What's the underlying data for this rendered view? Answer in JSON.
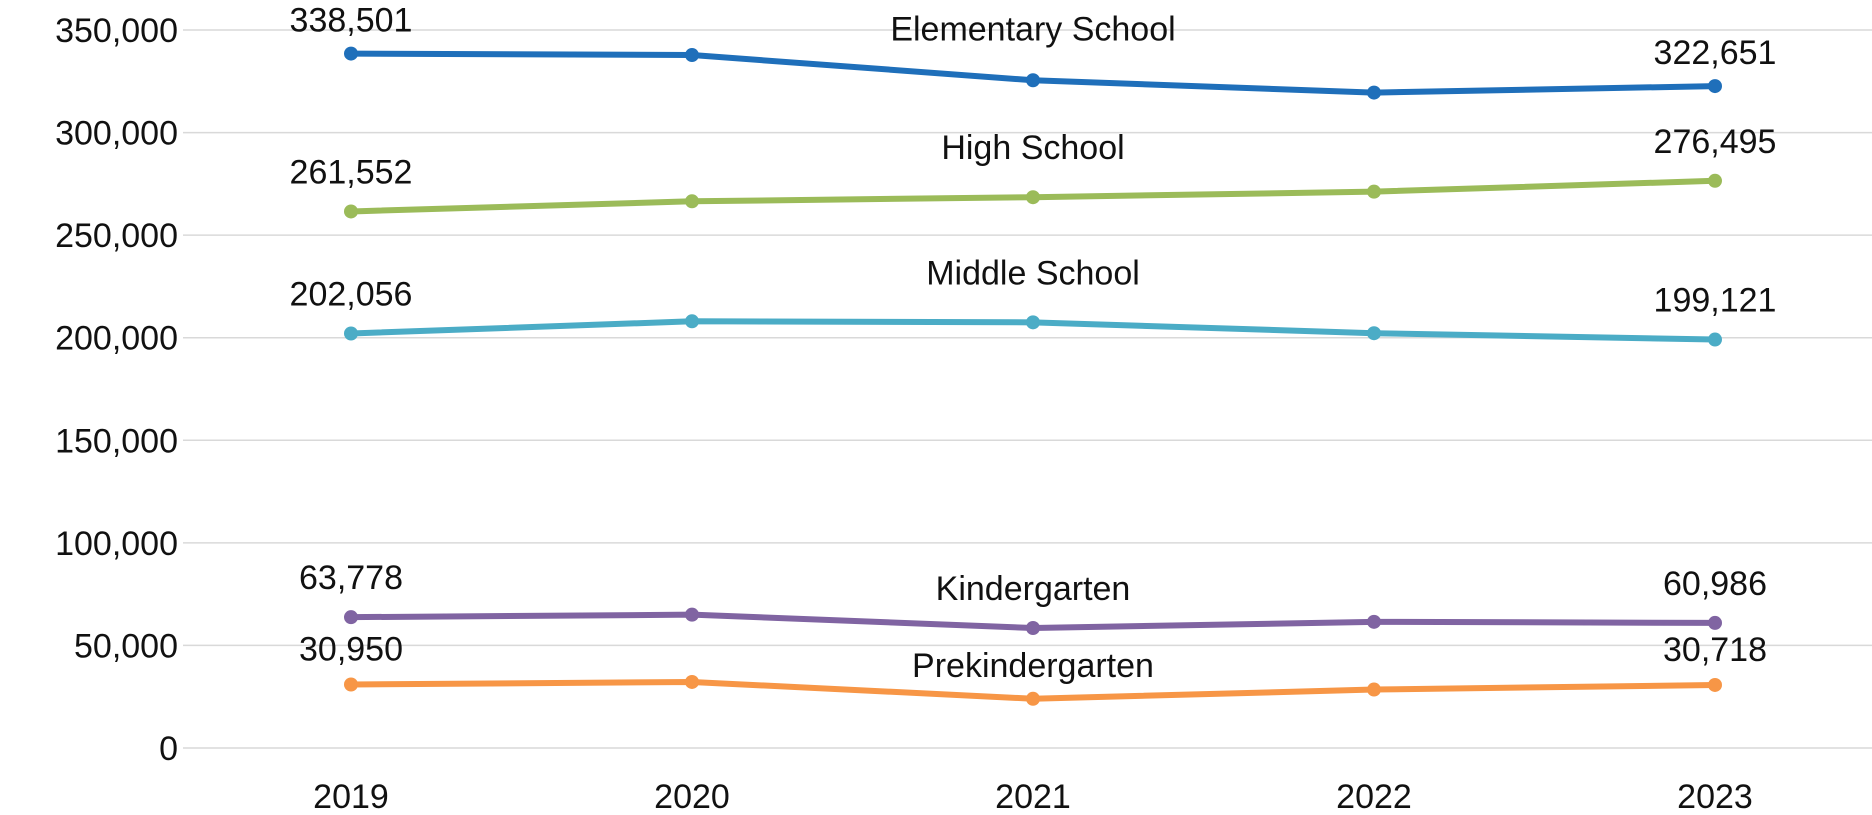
{
  "chart_data": {
    "type": "line",
    "x": [
      "2019",
      "2020",
      "2021",
      "2022",
      "2023"
    ],
    "ylim": [
      0,
      350000
    ],
    "yticks": [
      0,
      50000,
      100000,
      150000,
      200000,
      250000,
      300000,
      350000
    ],
    "ytick_labels": [
      "0",
      "50,000",
      "100,000",
      "150,000",
      "200,000",
      "250,000",
      "300,000",
      "350,000"
    ],
    "grid": true,
    "series": [
      {
        "name": "Elementary School",
        "color": "#1f6fba",
        "values": [
          338501,
          337800,
          325500,
          319500,
          322651
        ],
        "first_label": "338,501",
        "last_label": "322,651"
      },
      {
        "name": "High School",
        "color": "#9bbb59",
        "values": [
          261552,
          266500,
          268500,
          271200,
          276495
        ],
        "first_label": "261,552",
        "last_label": "276,495"
      },
      {
        "name": "Middle School",
        "color": "#4bacc6",
        "values": [
          202056,
          208000,
          207500,
          202200,
          199121
        ],
        "first_label": "202,056",
        "last_label": "199,121"
      },
      {
        "name": "Kindergarten",
        "color": "#8064a2",
        "values": [
          63778,
          65000,
          58500,
          61500,
          60986
        ],
        "first_label": "63,778",
        "last_label": "60,986"
      },
      {
        "name": "Prekindergarten",
        "color": "#f79646",
        "values": [
          30950,
          32200,
          24000,
          28500,
          30718
        ],
        "first_label": "30,950",
        "last_label": "30,718"
      }
    ]
  }
}
